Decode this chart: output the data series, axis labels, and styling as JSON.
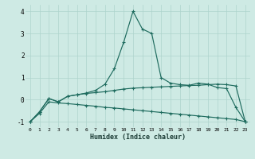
{
  "xlabel": "Humidex (Indice chaleur)",
  "bg_color": "#ceeae4",
  "line_color": "#1e6b5e",
  "grid_color": "#aed4cc",
  "x": [
    0,
    1,
    2,
    3,
    4,
    5,
    6,
    7,
    8,
    9,
    10,
    11,
    12,
    13,
    14,
    15,
    16,
    17,
    18,
    19,
    20,
    21,
    22,
    23
  ],
  "line_peak": [
    -1.0,
    -0.55,
    0.05,
    -0.1,
    0.15,
    0.22,
    0.3,
    0.42,
    0.7,
    1.4,
    2.6,
    4.0,
    3.2,
    3.0,
    1.0,
    0.75,
    0.68,
    0.65,
    0.75,
    0.7,
    0.55,
    0.5,
    -0.35,
    -1.0
  ],
  "line_mid": [
    -1.0,
    -0.55,
    0.05,
    -0.1,
    0.15,
    0.22,
    0.28,
    0.32,
    0.36,
    0.42,
    0.48,
    0.52,
    0.54,
    0.56,
    0.58,
    0.6,
    0.62,
    0.64,
    0.65,
    0.68,
    0.7,
    0.68,
    0.62,
    -1.0
  ],
  "line_bot": [
    -1.0,
    -0.62,
    -0.1,
    -0.15,
    -0.18,
    -0.22,
    -0.26,
    -0.3,
    -0.35,
    -0.38,
    -0.42,
    -0.46,
    -0.5,
    -0.54,
    -0.58,
    -0.62,
    -0.66,
    -0.7,
    -0.74,
    -0.78,
    -0.82,
    -0.86,
    -0.9,
    -1.0
  ],
  "ylim": [
    -1.25,
    4.3
  ],
  "xlim": [
    -0.5,
    23.5
  ],
  "yticks": [
    -1,
    0,
    1,
    2,
    3,
    4
  ],
  "xticks": [
    0,
    1,
    2,
    3,
    4,
    5,
    6,
    7,
    8,
    9,
    10,
    11,
    12,
    13,
    14,
    15,
    16,
    17,
    18,
    19,
    20,
    21,
    22,
    23
  ]
}
